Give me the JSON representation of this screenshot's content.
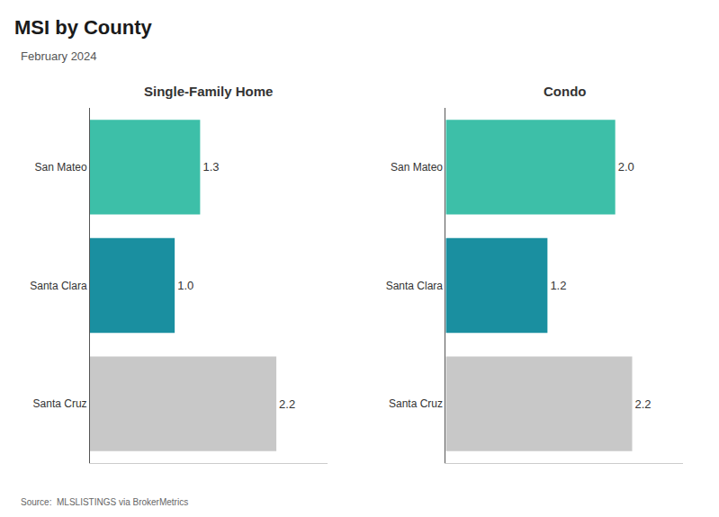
{
  "title": "MSI by County",
  "subtitle": "February 2024",
  "source": "Source:  MLSLISTINGS via BrokerMetrics",
  "chart_data": [
    {
      "type": "bar",
      "title": "Single-Family Home",
      "orientation": "horizontal",
      "categories": [
        "San Mateo",
        "Santa Clara",
        "Santa Cruz"
      ],
      "values": [
        1.3,
        1.0,
        2.2
      ],
      "value_labels": [
        "1.3",
        "1.0",
        "2.2"
      ],
      "colors": [
        "#3dbfa8",
        "#1a8fa0",
        "#c8c8c8"
      ],
      "xlim": [
        0,
        2.8
      ],
      "data_labels": true,
      "tick_labels": "y",
      "grid": false
    },
    {
      "type": "bar",
      "title": "Condo",
      "orientation": "horizontal",
      "categories": [
        "San Mateo",
        "Santa Clara",
        "Santa Cruz"
      ],
      "values": [
        2.0,
        1.2,
        2.2
      ],
      "value_labels": [
        "2.0",
        "1.2",
        "2.2"
      ],
      "colors": [
        "#3dbfa8",
        "#1a8fa0",
        "#c8c8c8"
      ],
      "xlim": [
        0,
        2.8
      ],
      "data_labels": true,
      "tick_labels": "y",
      "grid": false
    }
  ]
}
